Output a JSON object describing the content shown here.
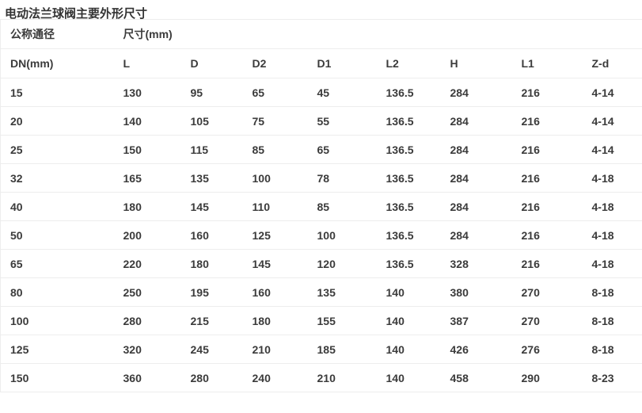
{
  "title": "电动法兰球阀主要外形尺寸",
  "colors": {
    "background": "#ffffff",
    "text": "#3b3b3b",
    "title_text": "#333333",
    "border": "#ededed"
  },
  "table": {
    "group_headers": [
      {
        "label": "公称通径",
        "span": "1"
      },
      {
        "label": "尺寸(mm)",
        "span": "8"
      }
    ],
    "columns": [
      "DN(mm)",
      "L",
      "D",
      "D2",
      "D1",
      "L2",
      "H",
      "L1",
      "Z-d"
    ],
    "rows": [
      [
        "15",
        "130",
        "95",
        "65",
        "45",
        "136.5",
        "284",
        "216",
        "4-14"
      ],
      [
        "20",
        "140",
        "105",
        "75",
        "55",
        "136.5",
        "284",
        "216",
        "4-14"
      ],
      [
        "25",
        "150",
        "115",
        "85",
        "65",
        "136.5",
        "284",
        "216",
        "4-14"
      ],
      [
        "32",
        "165",
        "135",
        "100",
        "78",
        "136.5",
        "284",
        "216",
        "4-18"
      ],
      [
        "40",
        "180",
        "145",
        "110",
        "85",
        "136.5",
        "284",
        "216",
        "4-18"
      ],
      [
        "50",
        "200",
        "160",
        "125",
        "100",
        "136.5",
        "284",
        "216",
        "4-18"
      ],
      [
        "65",
        "220",
        "180",
        "145",
        "120",
        "136.5",
        "328",
        "216",
        "4-18"
      ],
      [
        "80",
        "250",
        "195",
        "160",
        "135",
        "140",
        "380",
        "270",
        "8-18"
      ],
      [
        "100",
        "280",
        "215",
        "180",
        "155",
        "140",
        "387",
        "270",
        "8-18"
      ],
      [
        "125",
        "320",
        "245",
        "210",
        "185",
        "140",
        "426",
        "276",
        "8-18"
      ],
      [
        "150",
        "360",
        "280",
        "240",
        "210",
        "140",
        "458",
        "290",
        "8-23"
      ]
    ]
  }
}
